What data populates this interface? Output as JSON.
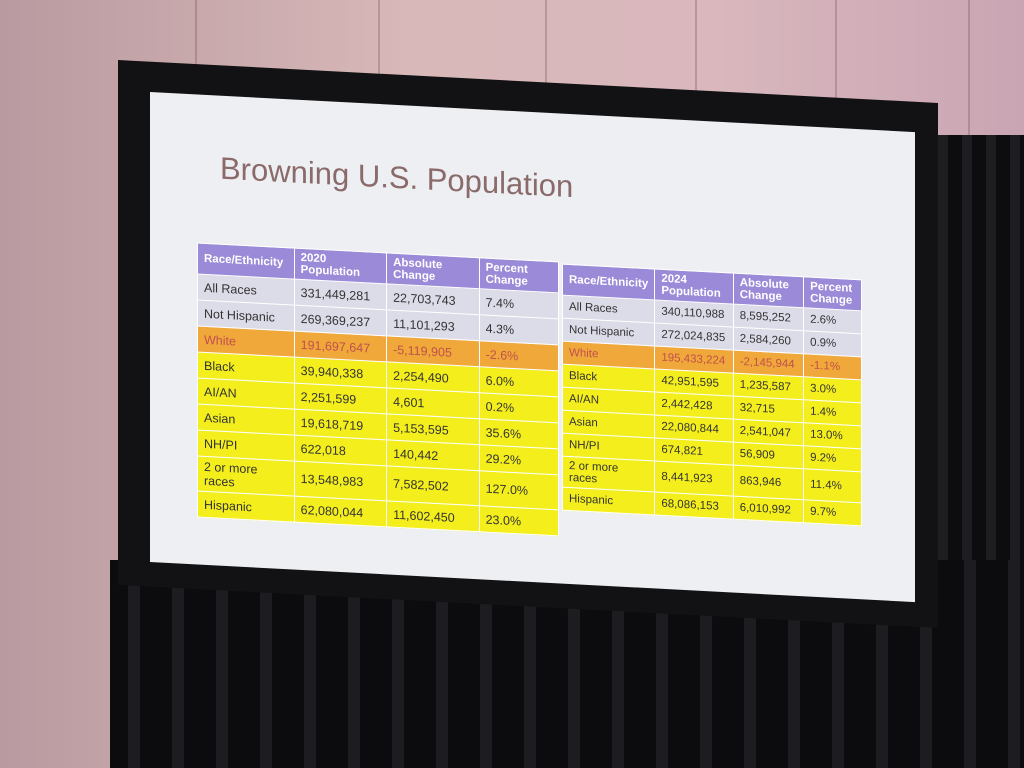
{
  "slide": {
    "title": "Browning U.S. Population"
  },
  "tables": [
    {
      "header": [
        "Race/Ethnicity",
        "2020 Population",
        "Absolute Change",
        "Percent Change"
      ],
      "rows": [
        [
          "All Races",
          "331,449,281",
          "22,703,743",
          "7.4%"
        ],
        [
          "Not Hispanic",
          "269,369,237",
          "11,101,293",
          "4.3%"
        ],
        [
          "White",
          "191,697,647",
          "-5,119,905",
          "-2.6%"
        ],
        [
          "Black",
          "39,940,338",
          "2,254,490",
          "6.0%"
        ],
        [
          "AI/AN",
          "2,251,599",
          "4,601",
          "0.2%"
        ],
        [
          "Asian",
          "19,618,719",
          "5,153,595",
          "35.6%"
        ],
        [
          "NH/PI",
          "622,018",
          "140,442",
          "29.2%"
        ],
        [
          "2 or more races",
          "13,548,983",
          "7,582,502",
          "127.0%"
        ],
        [
          "Hispanic",
          "62,080,044",
          "11,602,450",
          "23.0%"
        ]
      ]
    },
    {
      "header": [
        "Race/Ethnicity",
        "2024 Population",
        "Absolute Change",
        "Percent Change"
      ],
      "rows": [
        [
          "All Races",
          "340,110,988",
          "8,595,252",
          "2.6%"
        ],
        [
          "Not Hispanic",
          "272,024,835",
          "2,584,260",
          "0.9%"
        ],
        [
          "White",
          "195,433,224",
          "-2,145,944",
          "-1.1%"
        ],
        [
          "Black",
          "42,951,595",
          "1,235,587",
          "3.0%"
        ],
        [
          "AI/AN",
          "2,442,428",
          "32,715",
          "1.4%"
        ],
        [
          "Asian",
          "22,080,844",
          "2,541,047",
          "13.0%"
        ],
        [
          "NH/PI",
          "674,821",
          "56,909",
          "9.2%"
        ],
        [
          "2 or more races",
          "8,441,923",
          "863,946",
          "11.4%"
        ],
        [
          "Hispanic",
          "68,086,153",
          "6,010,992",
          "9.7%"
        ]
      ]
    }
  ]
}
